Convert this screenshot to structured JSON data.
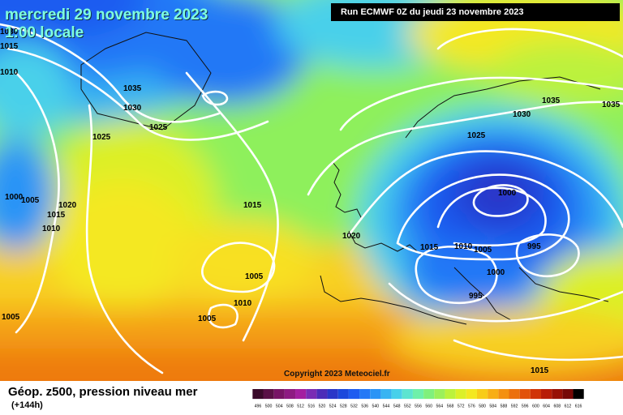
{
  "header": {
    "date_line": "mercredi 29 novembre 2023",
    "time_line": "1:00 locale",
    "run": "Run ECMWF 0Z du jeudi 23 novembre 2023"
  },
  "copyright": "Copyright 2023 Meteociel.fr",
  "footer": {
    "title": "Géop. z500, pression niveau mer",
    "lead": "(+144h)"
  },
  "isobar_labels": [
    "1035",
    "1030",
    "1025",
    "1015",
    "1020",
    "1010",
    "1005",
    "1000",
    "995",
    "1015",
    "1010",
    "1005",
    "1000",
    "995",
    "1030",
    "1025",
    "1035",
    "1035",
    "1020",
    "1015",
    "1010",
    "1005",
    "1000",
    "1005",
    "1010",
    "1025",
    "1030",
    "1015",
    "1015",
    "1005"
  ],
  "scale": {
    "values": [
      "496",
      "500",
      "504",
      "508",
      "512",
      "516",
      "520",
      "524",
      "528",
      "532",
      "536",
      "540",
      "544",
      "548",
      "552",
      "556",
      "560",
      "564",
      "568",
      "572",
      "576",
      "580",
      "584",
      "588",
      "592",
      "596",
      "600",
      "604",
      "608",
      "612",
      "616"
    ],
    "colors": [
      "#3a0a2a",
      "#5a1046",
      "#781466",
      "#8e1a82",
      "#a41ea0",
      "#7a2cb4",
      "#4c2cb8",
      "#2a36c8",
      "#1c48dc",
      "#1e5cf0",
      "#2478f6",
      "#2a94f6",
      "#38b4f2",
      "#48d0ea",
      "#5ce4d0",
      "#6ef0aa",
      "#80f07c",
      "#9cf05a",
      "#bcf23c",
      "#dcf028",
      "#f4e820",
      "#f8cc18",
      "#f8ae14",
      "#f49010",
      "#ec700c",
      "#e2520a",
      "#d03408",
      "#b81c06",
      "#981006",
      "#760806",
      "#000000"
    ]
  },
  "colors": {
    "date_text": "#7fffe0",
    "isobars": "#ffffff"
  }
}
